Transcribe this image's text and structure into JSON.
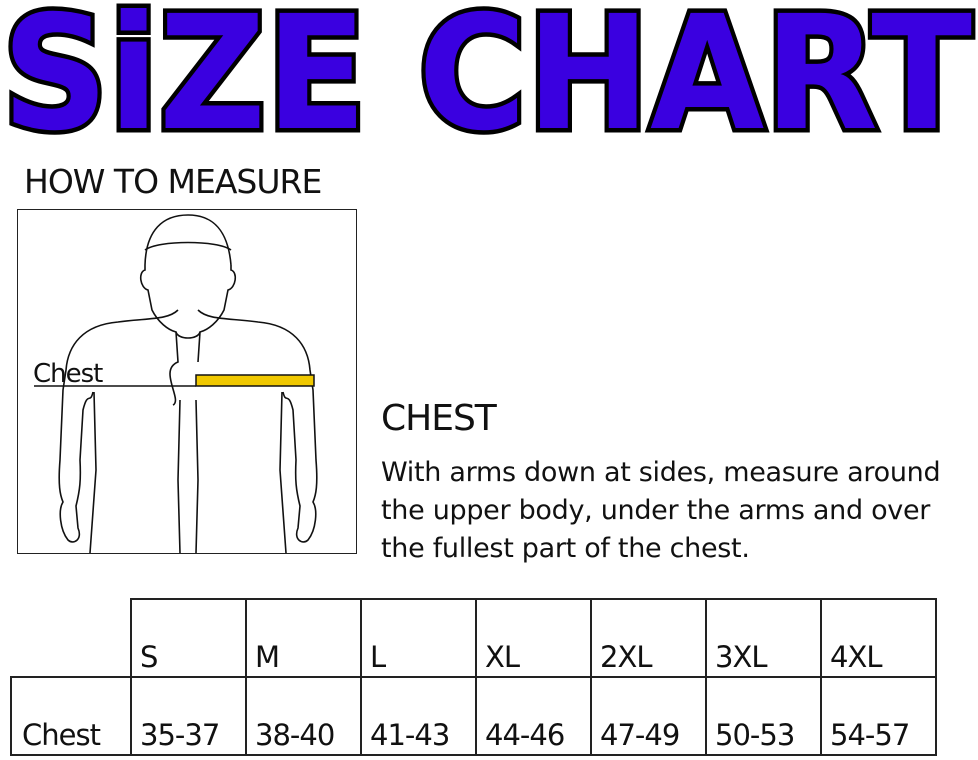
{
  "title": "SiZE CHART",
  "title_color": "#3a00e0",
  "how_to_measure": "HOW TO MEASURE",
  "figure": {
    "chest_label": "Chest",
    "tape_color": "#f0c800"
  },
  "chest_heading": "CHEST",
  "chest_description": "With arms down at sides, measure around the upper body, under the arms and over the fullest part of the chest.",
  "size_table": {
    "sizes": [
      "S",
      "M",
      "L",
      "XL",
      "2XL",
      "3XL",
      "4XL"
    ],
    "rows": [
      {
        "label": "Chest",
        "values": [
          "35-37",
          "38-40",
          "41-43",
          "44-46",
          "47-49",
          "50-53",
          "54-57"
        ]
      }
    ]
  }
}
